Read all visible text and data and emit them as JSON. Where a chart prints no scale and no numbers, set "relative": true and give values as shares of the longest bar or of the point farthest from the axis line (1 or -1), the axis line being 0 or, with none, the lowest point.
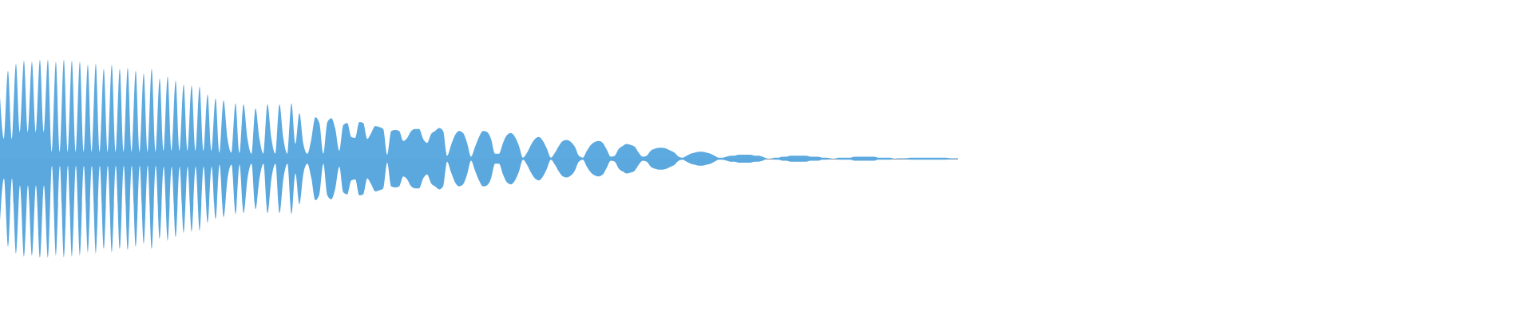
{
  "chart_data": {
    "type": "area",
    "relative": true,
    "categories": [
      null,
      null,
      null,
      null,
      null,
      null,
      null,
      null,
      null,
      null,
      null,
      null,
      null,
      null,
      null,
      null,
      null,
      null,
      null,
      null,
      null,
      null,
      null,
      null,
      null,
      null,
      null,
      null,
      null,
      null,
      null,
      null,
      null,
      null,
      null,
      null,
      null,
      null,
      null,
      null,
      null,
      null,
      null,
      null,
      null,
      null,
      null,
      null,
      null,
      null,
      null,
      null,
      null,
      null,
      null,
      null,
      null,
      null,
      null,
      null,
      null,
      null,
      null,
      null,
      null,
      null,
      null,
      null,
      null,
      null,
      null,
      null,
      null,
      null,
      null,
      null,
      null,
      null,
      null,
      null,
      null,
      null,
      null,
      null,
      null,
      null,
      null,
      null,
      null,
      null,
      null,
      null,
      null,
      null,
      null,
      null,
      null,
      null,
      null,
      null,
      null,
      null,
      null,
      null,
      null,
      null,
      null,
      null,
      null,
      null,
      null,
      null,
      null,
      null,
      null,
      null,
      null,
      null,
      null,
      null,
      null,
      null,
      null,
      null,
      null,
      null,
      null,
      null,
      null,
      null,
      null,
      null,
      null,
      null,
      null,
      null,
      null,
      null,
      null,
      null,
      null,
      null,
      null,
      null,
      null,
      null,
      null,
      null,
      null,
      null,
      null,
      null,
      null,
      null,
      null,
      null,
      null,
      null,
      null,
      null,
      null,
      null,
      null,
      null,
      null,
      null,
      null,
      null,
      null,
      null,
      null,
      null,
      null,
      null,
      null,
      null,
      null,
      null,
      null,
      null,
      null,
      null,
      null,
      null,
      null,
      null,
      null,
      null,
      null,
      null,
      null,
      null,
      null,
      null,
      null,
      null,
      null,
      null,
      null,
      null,
      null,
      null,
      null,
      null,
      null,
      null,
      null,
      null,
      null,
      null,
      null,
      null,
      null,
      null,
      null,
      null,
      null,
      null,
      null,
      null,
      null,
      null,
      null,
      null,
      null,
      null,
      null,
      null,
      null,
      null,
      null,
      null,
      null,
      null,
      null,
      null,
      null,
      null,
      null,
      null,
      null
    ],
    "series": [
      {
        "color": "#5daae0",
        "values": [
          0.63,
          0.2,
          0.89,
          0.2,
          0.96,
          0.27,
          0.99,
          0.27,
          0.98,
          0.27,
          1.0,
          0.27,
          1.0,
          0.07,
          0.98,
          0.07,
          1.0,
          0.07,
          0.99,
          0.07,
          0.98,
          0.07,
          0.95,
          0.07,
          0.96,
          0.07,
          0.91,
          0.07,
          0.95,
          0.07,
          0.91,
          0.07,
          0.92,
          0.07,
          0.89,
          0.07,
          0.86,
          0.07,
          0.91,
          0.07,
          0.81,
          0.08,
          0.83,
          0.08,
          0.79,
          0.08,
          0.75,
          0.08,
          0.74,
          0.08,
          0.73,
          0.08,
          0.65,
          0.08,
          0.61,
          0.06,
          0.59,
          0.2,
          0.06,
          0.56,
          0.06,
          0.55,
          0.2,
          0.05,
          0.51,
          0.2,
          0.05,
          0.55,
          0.2,
          0.05,
          0.55,
          0.2,
          0.05,
          0.56,
          0.15,
          0.46,
          0.15,
          0.05,
          0.2,
          0.42,
          0.36,
          0.05,
          0.37,
          0.41,
          0.3,
          0.08,
          0.34,
          0.36,
          0.22,
          0.21,
          0.37,
          0.36,
          0.2,
          0.26,
          0.33,
          0.32,
          0.3,
          0.04,
          0.28,
          0.29,
          0.28,
          0.18,
          0.21,
          0.28,
          0.3,
          0.3,
          0.2,
          0.16,
          0.25,
          0.28,
          0.31,
          0.28,
          0.03,
          0.14,
          0.24,
          0.28,
          0.26,
          0.16,
          0.02,
          0.12,
          0.22,
          0.28,
          0.27,
          0.2,
          0.05,
          0.05,
          0.16,
          0.24,
          0.26,
          0.22,
          0.13,
          0.01,
          0.06,
          0.14,
          0.2,
          0.22,
          0.18,
          0.1,
          0.01,
          0.06,
          0.13,
          0.18,
          0.19,
          0.17,
          0.12,
          0.03,
          0.01,
          0.08,
          0.14,
          0.17,
          0.18,
          0.16,
          0.09,
          0.02,
          0.03,
          0.1,
          0.13,
          0.15,
          0.14,
          0.12,
          0.06,
          0.02,
          0.03,
          0.08,
          0.1,
          0.11,
          0.11,
          0.1,
          0.08,
          0.06,
          0.02,
          0.01,
          0.03,
          0.05,
          0.06,
          0.07,
          0.07,
          0.06,
          0.05,
          0.03,
          0.01,
          0.01,
          0.02,
          0.03,
          0.03,
          0.04,
          0.04,
          0.04,
          0.04,
          0.03,
          0.03,
          0.02,
          0.005,
          0,
          0.01,
          0.01,
          0.02,
          0.02,
          0.03,
          0.03,
          0.03,
          0.03,
          0.03,
          0.02,
          0.02,
          0.02,
          0.01,
          0.01,
          0.005,
          0,
          0.01,
          0.01,
          0.01,
          0.01,
          0.02,
          0.02,
          0.02,
          0.02,
          0.02,
          0.02,
          0.01,
          0.01,
          0.01,
          0.01,
          0,
          0.005,
          0.005,
          0.005,
          0.01,
          0.01,
          0.01,
          0.01,
          0.01,
          0.01,
          0.01,
          0.01,
          0.01,
          0.01,
          0.005,
          0.005,
          0.005
        ]
      },
      {
        "color": "#5ba8de",
        "values": [
          -0.63,
          -0.2,
          -0.89,
          -0.2,
          -0.96,
          -0.27,
          -0.99,
          -0.27,
          -0.98,
          -0.27,
          -1.0,
          -0.27,
          -1.0,
          -0.07,
          -0.98,
          -0.07,
          -1.0,
          -0.07,
          -0.99,
          -0.07,
          -0.98,
          -0.07,
          -0.95,
          -0.07,
          -0.96,
          -0.07,
          -0.91,
          -0.07,
          -0.95,
          -0.07,
          -0.91,
          -0.07,
          -0.92,
          -0.07,
          -0.89,
          -0.07,
          -0.86,
          -0.07,
          -0.91,
          -0.07,
          -0.81,
          -0.08,
          -0.83,
          -0.08,
          -0.79,
          -0.08,
          -0.75,
          -0.08,
          -0.74,
          -0.08,
          -0.73,
          -0.08,
          -0.65,
          -0.08,
          -0.61,
          -0.06,
          -0.59,
          -0.2,
          -0.06,
          -0.56,
          -0.06,
          -0.55,
          -0.2,
          -0.05,
          -0.51,
          -0.2,
          -0.05,
          -0.55,
          -0.2,
          -0.05,
          -0.55,
          -0.2,
          -0.05,
          -0.56,
          -0.15,
          -0.46,
          -0.15,
          -0.05,
          -0.2,
          -0.42,
          -0.36,
          -0.05,
          -0.37,
          -0.41,
          -0.3,
          -0.08,
          -0.34,
          -0.36,
          -0.22,
          -0.21,
          -0.37,
          -0.36,
          -0.2,
          -0.26,
          -0.33,
          -0.32,
          -0.3,
          -0.04,
          -0.28,
          -0.29,
          -0.28,
          -0.18,
          -0.21,
          -0.28,
          -0.3,
          -0.3,
          -0.2,
          -0.16,
          -0.25,
          -0.28,
          -0.31,
          -0.28,
          -0.03,
          -0.14,
          -0.24,
          -0.28,
          -0.26,
          -0.16,
          -0.02,
          -0.12,
          -0.22,
          -0.28,
          -0.27,
          -0.2,
          -0.05,
          -0.05,
          -0.16,
          -0.24,
          -0.26,
          -0.22,
          -0.13,
          -0.01,
          -0.06,
          -0.14,
          -0.2,
          -0.22,
          -0.18,
          -0.1,
          -0.01,
          -0.06,
          -0.13,
          -0.18,
          -0.19,
          -0.17,
          -0.12,
          -0.03,
          -0.01,
          -0.08,
          -0.14,
          -0.17,
          -0.18,
          -0.16,
          -0.09,
          -0.02,
          -0.03,
          -0.1,
          -0.13,
          -0.15,
          -0.14,
          -0.12,
          -0.06,
          -0.02,
          -0.03,
          -0.08,
          -0.1,
          -0.11,
          -0.11,
          -0.1,
          -0.08,
          -0.06,
          -0.02,
          -0.01,
          -0.03,
          -0.05,
          -0.06,
          -0.07,
          -0.07,
          -0.06,
          -0.05,
          -0.03,
          -0.01,
          -0.01,
          -0.02,
          -0.03,
          -0.03,
          -0.04,
          -0.04,
          -0.04,
          -0.04,
          -0.03,
          -0.03,
          -0.02,
          -0.005,
          0,
          -0.01,
          -0.01,
          -0.02,
          -0.02,
          -0.03,
          -0.03,
          -0.03,
          -0.03,
          -0.03,
          -0.02,
          -0.02,
          -0.02,
          -0.01,
          -0.01,
          -0.005,
          0,
          -0.01,
          -0.01,
          -0.01,
          -0.01,
          -0.02,
          -0.02,
          -0.02,
          -0.02,
          -0.02,
          -0.02,
          -0.01,
          -0.01,
          -0.01,
          -0.01,
          0,
          -0.005,
          -0.005,
          -0.005,
          -0.01,
          -0.01,
          -0.01,
          -0.01,
          -0.01,
          -0.01,
          -0.01,
          -0.01,
          -0.01,
          -0.01,
          -0.005,
          -0.005,
          -0.005
        ]
      }
    ]
  }
}
